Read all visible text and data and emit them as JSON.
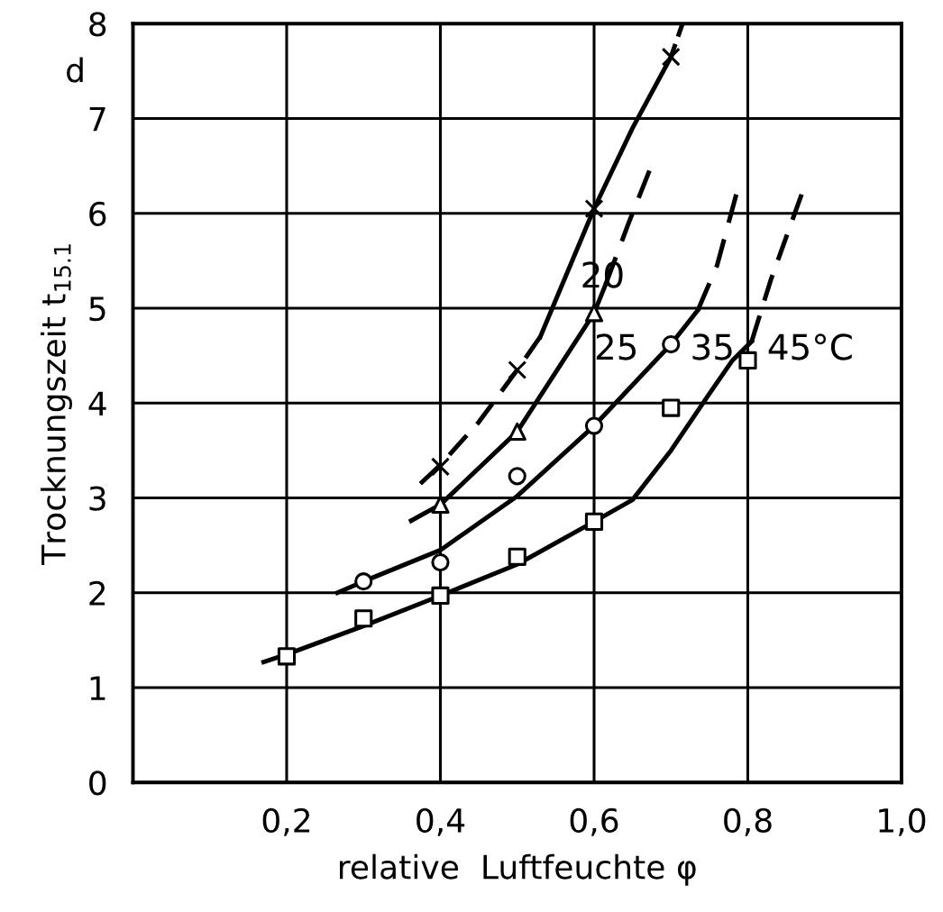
{
  "chart_data": {
    "type": "line",
    "xlabel": "relative  Luftfeuchte φ",
    "ylabel": "Trocknungszeit t$_{15.1}$",
    "xlim": [
      0,
      1.0
    ],
    "xticks": [
      {
        "value": 0.2,
        "label": "0,2"
      },
      {
        "value": 0.4,
        "label": "0,4"
      },
      {
        "value": 0.6,
        "label": "0,6"
      },
      {
        "value": 0.8,
        "label": "0,8"
      },
      {
        "value": 1.0,
        "label": "1,0"
      }
    ],
    "ylim": [
      0,
      8
    ],
    "yticks": [
      0,
      1,
      2,
      3,
      4,
      5,
      6,
      7,
      8
    ],
    "grid": true,
    "series": [
      {
        "type": "scatter",
        "marker": "cross",
        "color": "#000000",
        "x": [
          0.4,
          0.5,
          0.6,
          0.7
        ],
        "values": [
          3.33,
          4.35,
          6.05,
          7.65
        ]
      },
      {
        "type": "scatter",
        "marker": "triangle",
        "color": "#000000",
        "x": [
          0.4,
          0.5,
          0.6
        ],
        "values": [
          2.93,
          3.7,
          4.95
        ]
      },
      {
        "type": "scatter",
        "marker": "circle",
        "color": "#000000",
        "x": [
          0.3,
          0.4,
          0.5,
          0.6,
          0.7
        ],
        "values": [
          2.12,
          2.32,
          3.23,
          3.76,
          4.62
        ]
      },
      {
        "type": "scatter",
        "marker": "square",
        "color": "#000000",
        "x": [
          0.2,
          0.3,
          0.4,
          0.5,
          0.6,
          0.7,
          0.8
        ],
        "values": [
          1.33,
          1.73,
          1.97,
          2.38,
          2.75,
          3.95,
          4.45
        ]
      },
      {
        "type": "line",
        "line_style": "dashed",
        "color": "#000000",
        "x": [
          0.374,
          0.4,
          0.45,
          0.5,
          0.53
        ],
        "values": [
          3.15,
          3.35,
          3.8,
          4.35,
          4.7
        ]
      },
      {
        "type": "line",
        "line_style": "solid",
        "color": "#000000",
        "x": [
          0.53,
          0.6,
          0.65,
          0.7
        ],
        "values": [
          4.7,
          6.05,
          6.9,
          7.65
        ]
      },
      {
        "type": "line",
        "line_style": "dashed",
        "color": "#000000",
        "x": [
          0.7,
          0.715
        ],
        "values": [
          7.65,
          8.0
        ]
      },
      {
        "type": "line",
        "line_style": "solid",
        "color": "#000000",
        "x": [
          0.362,
          0.4,
          0.5,
          0.6,
          0.615
        ],
        "values": [
          2.76,
          2.93,
          3.7,
          4.95,
          5.25
        ]
      },
      {
        "type": "line",
        "line_style": "dashed",
        "color": "#000000",
        "x": [
          0.615,
          0.645,
          0.672
        ],
        "values": [
          5.25,
          5.9,
          6.45
        ]
      },
      {
        "type": "line",
        "line_style": "solid",
        "color": "#000000",
        "x": [
          0.266,
          0.3,
          0.4,
          0.5,
          0.6,
          0.7,
          0.735
        ],
        "values": [
          2.0,
          2.12,
          2.45,
          3.02,
          3.76,
          4.62,
          4.98
        ]
      },
      {
        "type": "line",
        "line_style": "dashed",
        "color": "#000000",
        "x": [
          0.735,
          0.76,
          0.785
        ],
        "values": [
          4.98,
          5.45,
          6.2
        ]
      },
      {
        "type": "line",
        "line_style": "solid",
        "color": "#000000",
        "x": [
          0.17,
          0.2,
          0.3,
          0.4,
          0.5,
          0.6,
          0.65,
          0.7,
          0.75,
          0.78,
          0.805
        ],
        "values": [
          1.27,
          1.35,
          1.65,
          1.97,
          2.3,
          2.75,
          2.98,
          3.5,
          4.1,
          4.45,
          4.65
        ]
      },
      {
        "type": "line",
        "line_style": "dashed",
        "color": "#000000",
        "x": [
          0.805,
          0.83,
          0.87
        ],
        "values": [
          4.65,
          5.3,
          6.2
        ]
      }
    ],
    "annotations": [
      "d",
      "20",
      "25",
      "35",
      "45°C"
    ]
  }
}
